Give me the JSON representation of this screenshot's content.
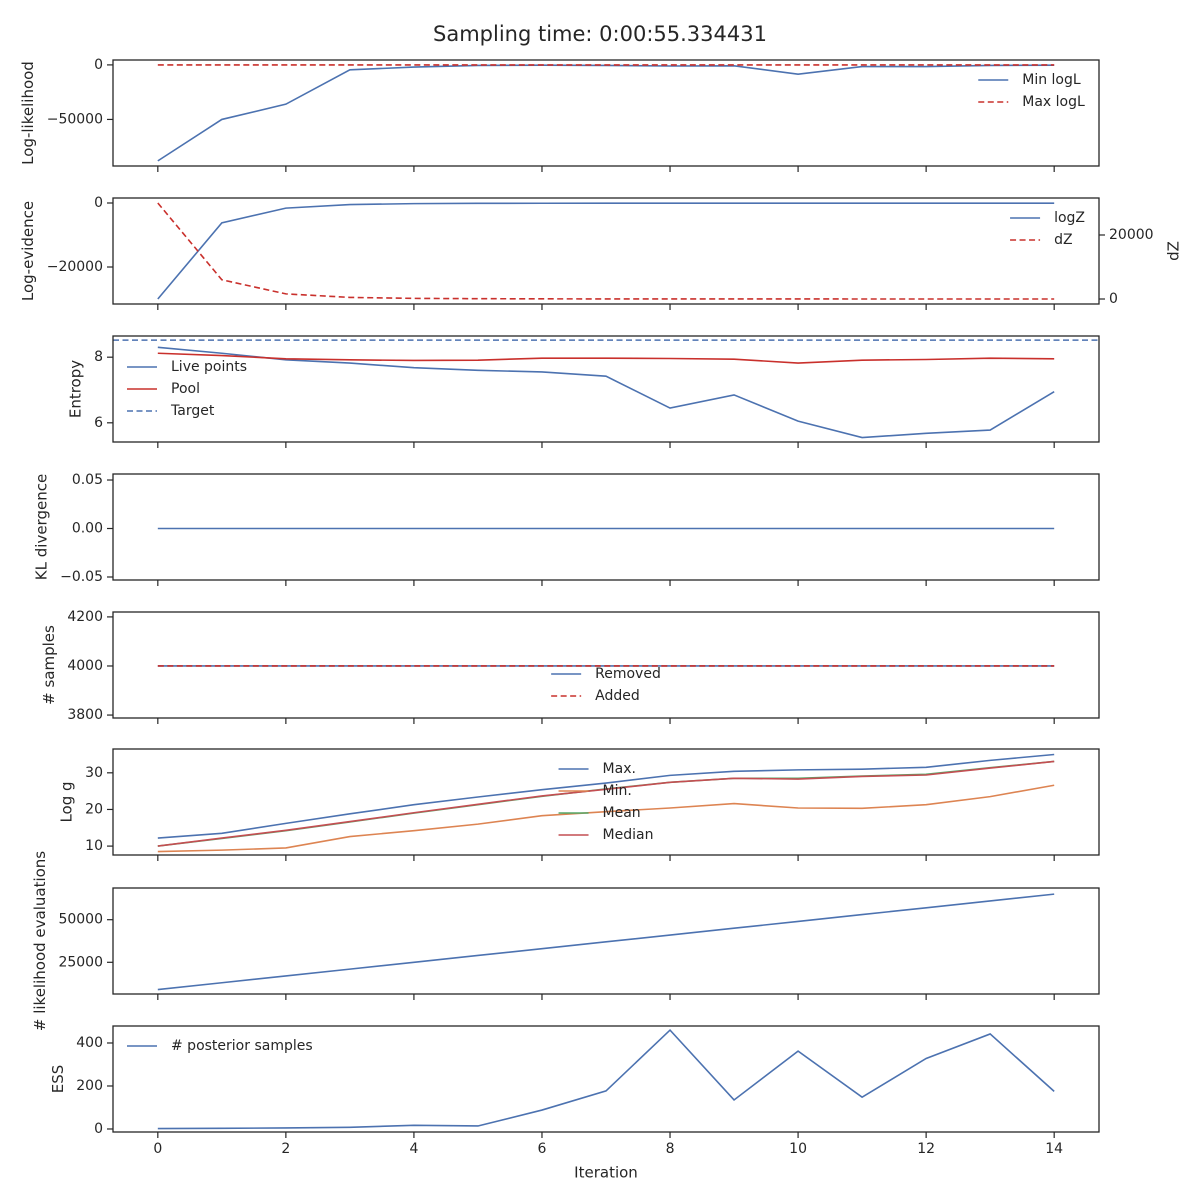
{
  "title": "Sampling time: 0:00:55.334431",
  "chart_data": [
    {
      "type": "line",
      "ylabel": "Log-likelihood",
      "x": [
        0,
        1,
        2,
        3,
        4,
        5,
        6,
        7,
        8,
        9,
        10,
        11,
        12,
        13,
        14
      ],
      "xlim": [
        -0.7,
        14.7
      ],
      "xticks": [
        0,
        2,
        4,
        6,
        8,
        10,
        12,
        14
      ],
      "ylim": [
        -92700,
        4500
      ],
      "yticks": [
        {
          "value": -50000,
          "label": "−50000"
        },
        0
      ],
      "legend": "upper right",
      "series": [
        {
          "name": "Min logL",
          "color": "#4c72b0",
          "values": [
            -88000,
            -50000,
            -36000,
            -4500,
            -2000,
            -500,
            -300,
            -500,
            -1000,
            -800,
            -8500,
            -1500,
            -1500,
            -500,
            -300
          ]
        },
        {
          "name": "Max logL",
          "color": "#c9302c",
          "linestyle": "dashed",
          "values": [
            0,
            0,
            0,
            0,
            0,
            0,
            0,
            0,
            0,
            0,
            0,
            0,
            0,
            0,
            0
          ]
        }
      ]
    },
    {
      "type": "line",
      "ylabel": "Log-evidence",
      "y2label": "dZ",
      "x": [
        0,
        1,
        2,
        3,
        4,
        5,
        6,
        7,
        8,
        9,
        10,
        11,
        12,
        13,
        14
      ],
      "xlim": [
        -0.7,
        14.7
      ],
      "xticks": [
        0,
        2,
        4,
        6,
        8,
        10,
        12,
        14
      ],
      "ylim": [
        -31560,
        1560
      ],
      "yticks": [
        {
          "value": -20000,
          "label": "−20000"
        },
        0
      ],
      "y2lim": [
        -1560,
        31560
      ],
      "y2ticks": [
        0,
        20000
      ],
      "legend": "upper right",
      "series": [
        {
          "name": "logZ",
          "color": "#4c72b0",
          "values": [
            -30000,
            -6200,
            -1600,
            -500,
            -200,
            -100,
            -80,
            -60,
            -50,
            -50,
            -50,
            -50,
            -50,
            -50,
            -50
          ]
        },
        {
          "name": "dZ",
          "color": "#c9302c",
          "linestyle": "dashed",
          "axis": "y2",
          "values": [
            30000,
            6000,
            1600,
            500,
            200,
            100,
            50,
            30,
            20,
            10,
            10,
            5,
            5,
            5,
            5
          ]
        }
      ]
    },
    {
      "type": "line",
      "ylabel": "Entropy",
      "x": [
        0,
        1,
        2,
        3,
        4,
        5,
        6,
        7,
        8,
        9,
        10,
        11,
        12,
        13,
        14
      ],
      "xlim": [
        -0.7,
        14.7
      ],
      "xticks": [
        0,
        2,
        4,
        6,
        8,
        10,
        12,
        14
      ],
      "ylim": [
        5.415,
        8.646
      ],
      "yticks": [
        6,
        8
      ],
      "legend": "center left",
      "series": [
        {
          "name": "Live points",
          "color": "#4c72b0",
          "values": [
            8.3,
            8.12,
            7.92,
            7.82,
            7.68,
            7.6,
            7.55,
            7.42,
            6.45,
            6.85,
            6.05,
            5.55,
            5.68,
            5.78,
            6.95
          ]
        },
        {
          "name": "Pool",
          "color": "#c9302c",
          "values": [
            8.12,
            8.05,
            7.95,
            7.92,
            7.9,
            7.91,
            7.97,
            7.97,
            7.96,
            7.94,
            7.82,
            7.91,
            7.93,
            7.97,
            7.95
          ]
        }
      ],
      "hlines": [
        {
          "name": "Target",
          "color": "#4c72b0",
          "linestyle": "dashed",
          "value": 8.52
        }
      ]
    },
    {
      "type": "line",
      "ylabel": "KL divergence",
      "x": [
        0,
        1,
        2,
        3,
        4,
        5,
        6,
        7,
        8,
        9,
        10,
        11,
        12,
        13,
        14
      ],
      "xlim": [
        -0.7,
        14.7
      ],
      "xticks": [
        0,
        2,
        4,
        6,
        8,
        10,
        12,
        14
      ],
      "ylim": [
        -0.0531,
        0.0562
      ],
      "yticks": [
        {
          "value": -0.05,
          "label": "−0.05"
        },
        {
          "value": 0,
          "label": "0.00"
        },
        0.05
      ],
      "series": [
        {
          "color": "#4c72b0",
          "values": [
            0,
            0,
            0,
            0,
            0,
            0,
            0,
            0,
            0,
            0,
            0,
            0,
            0,
            0,
            0
          ]
        }
      ]
    },
    {
      "type": "line",
      "ylabel": "# samples",
      "x": [
        0,
        1,
        2,
        3,
        4,
        5,
        6,
        7,
        8,
        9,
        10,
        11,
        12,
        13,
        14
      ],
      "xlim": [
        -0.7,
        14.7
      ],
      "xticks": [
        0,
        2,
        4,
        6,
        8,
        10,
        12,
        14
      ],
      "ylim": [
        3788,
        4220
      ],
      "yticks": [
        3800,
        4000,
        4200
      ],
      "legend": "lower center",
      "series": [
        {
          "name": "Removed",
          "color": "#4c72b0",
          "values": [
            4000,
            4000,
            4000,
            4000,
            4000,
            4000,
            4000,
            4000,
            4000,
            4000,
            4000,
            4000,
            4000,
            4000,
            4000
          ]
        },
        {
          "name": "Added",
          "color": "#c9302c",
          "linestyle": "dashed",
          "values": [
            4000,
            4000,
            4000,
            4000,
            4000,
            4000,
            4000,
            4000,
            4000,
            4000,
            4000,
            4000,
            4000,
            4000,
            4000
          ]
        }
      ]
    },
    {
      "type": "line",
      "ylabel": "Log g",
      "x": [
        0,
        1,
        2,
        3,
        4,
        5,
        6,
        7,
        8,
        9,
        10,
        11,
        12,
        13,
        14
      ],
      "xlim": [
        -0.7,
        14.7
      ],
      "xticks": [
        0,
        2,
        4,
        6,
        8,
        10,
        12,
        14
      ],
      "ylim": [
        7.57,
        36.5
      ],
      "yticks": [
        10,
        20,
        30
      ],
      "legend": "upper center",
      "series": [
        {
          "name": "Max.",
          "color": "#4c72b0",
          "values": [
            12.2,
            13.5,
            16.2,
            18.8,
            21.3,
            23.4,
            25.4,
            27.2,
            29.3,
            30.4,
            30.8,
            31,
            31.5,
            33.4,
            35
          ]
        },
        {
          "name": "Min.",
          "color": "#dd8452",
          "values": [
            8.5,
            8.9,
            9.5,
            12.6,
            14.2,
            16,
            18.3,
            19.4,
            20.4,
            21.6,
            20.4,
            20.3,
            21.3,
            23.5,
            26.6
          ]
        },
        {
          "name": "Mean",
          "color": "#55a868",
          "values": [
            10,
            12.1,
            14.2,
            16.6,
            19,
            21.3,
            23.6,
            25.6,
            27.4,
            28.5,
            28.5,
            29.1,
            29.6,
            31.4,
            33.1
          ]
        },
        {
          "name": "Median",
          "color": "#c44e52",
          "values": [
            10,
            12.2,
            14.3,
            16.7,
            19.1,
            21.4,
            23.7,
            25.5,
            27.4,
            28.5,
            28.3,
            29,
            29.4,
            31.3,
            33.1
          ]
        }
      ]
    },
    {
      "type": "line",
      "ylabel": "# likelihood evaluations",
      "x": [
        0,
        1,
        2,
        3,
        4,
        5,
        6,
        7,
        8,
        9,
        10,
        11,
        12,
        13,
        14
      ],
      "xlim": [
        -0.7,
        14.7
      ],
      "xticks": [
        0,
        2,
        4,
        6,
        8,
        10,
        12,
        14
      ],
      "ylim": [
        6395,
        68605
      ],
      "yticks": [
        25000,
        50000
      ],
      "series": [
        {
          "color": "#4c72b0",
          "values": [
            9000,
            13000,
            17000,
            21000,
            25000,
            29000,
            33000,
            37000,
            41000,
            45000,
            49000,
            53000,
            57000,
            61000,
            65000
          ]
        }
      ]
    },
    {
      "type": "line",
      "ylabel": "ESS",
      "xlabel": "Iteration",
      "x": [
        0,
        1,
        2,
        3,
        4,
        5,
        6,
        7,
        8,
        9,
        10,
        11,
        12,
        13,
        14
      ],
      "xlim": [
        -0.7,
        14.7
      ],
      "xticks": [
        0,
        2,
        4,
        6,
        8,
        10,
        12,
        14
      ],
      "ylim": [
        -14,
        479
      ],
      "yticks": [
        0,
        200,
        400
      ],
      "legend": "upper left",
      "series": [
        {
          "name": "# posterior samples",
          "color": "#4c72b0",
          "values": [
            2,
            3,
            5,
            8,
            17,
            14,
            88,
            177,
            460,
            135,
            362,
            148,
            328,
            442,
            175
          ]
        }
      ]
    }
  ]
}
